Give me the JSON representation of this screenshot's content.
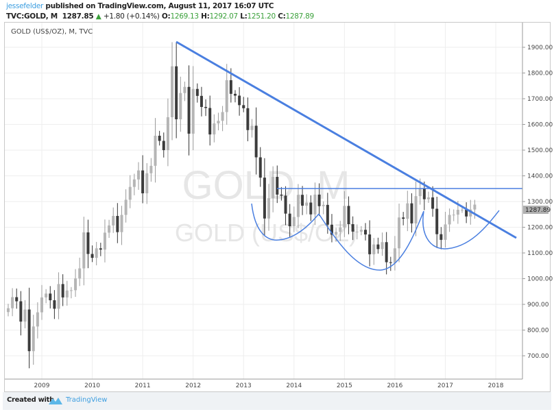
{
  "header": {
    "author": "jessefelder",
    "published": "published on TradingView.com, August 11, 2017 16:07 UTC",
    "symbol": "TVC:GOLD, M",
    "last": "1287.85",
    "change": "+1.80 (+0.14%)",
    "o_label": "O:",
    "o": "1269.13",
    "h_label": "H:",
    "h": "1292.07",
    "l_label": "L:",
    "l": "1251.20",
    "c_label": "C:",
    "c": "1287.89"
  },
  "chart_title": "GOLD (US$/OZ), M, TVC",
  "watermark": {
    "line1": "GOLD, M",
    "line2": "GOLD (US$/OZ)"
  },
  "footer": {
    "created_with": "Created with",
    "brand": "TradingView"
  },
  "colors": {
    "up": "#b5b5b5",
    "down": "#3c3c3c",
    "drawing": "#4a7fe0",
    "accent": "#3d9ee0",
    "price_tag": "#b0b0b0"
  },
  "chart_data": {
    "type": "candlestick",
    "interval": "monthly",
    "start_month": "2008-05",
    "close": [
      885,
      928,
      912,
      833,
      880,
      718,
      814,
      869,
      927,
      942,
      916,
      883,
      979,
      927,
      954,
      955,
      1001,
      1040,
      1180,
      1096,
      1081,
      1118,
      1113,
      1179,
      1207,
      1244,
      1181,
      1248,
      1307,
      1357,
      1386,
      1421,
      1332,
      1410,
      1439,
      1556,
      1536,
      1500,
      1628,
      1826,
      1620,
      1722,
      1746,
      1564,
      1738,
      1711,
      1668,
      1664,
      1561,
      1604,
      1614,
      1648,
      1772,
      1719,
      1712,
      1675,
      1663,
      1578,
      1595,
      1472,
      1393,
      1234,
      1313,
      1396,
      1327,
      1323,
      1253,
      1204,
      1240,
      1326,
      1284,
      1296,
      1250,
      1327,
      1282,
      1287,
      1210,
      1171,
      1182,
      1199,
      1283,
      1212,
      1183,
      1183,
      1190,
      1172,
      1095,
      1133,
      1115,
      1142,
      1064,
      1061,
      1118,
      1238,
      1233,
      1293,
      1215,
      1321,
      1351,
      1309,
      1316,
      1272,
      1173,
      1151,
      1211,
      1248,
      1249,
      1268,
      1268,
      1242,
      1269,
      1288
    ],
    "ylim": [
      650,
      2000
    ],
    "y_ticks": [
      "700.00",
      "800.00",
      "900.00",
      "1000.00",
      "1100.00",
      "1200.00",
      "1300.00",
      "1400.00",
      "1500.00",
      "1600.00",
      "1700.00",
      "1800.00",
      "1900.00"
    ],
    "x_ticks": [
      "2009",
      "2010",
      "2011",
      "2012",
      "2013",
      "2014",
      "2015",
      "2016",
      "2017",
      "2018"
    ],
    "last_price_label": "1287.89",
    "grid": true,
    "drawings": [
      "descending trendline",
      "horizontal neckline ~1350",
      "three cup arcs"
    ]
  }
}
